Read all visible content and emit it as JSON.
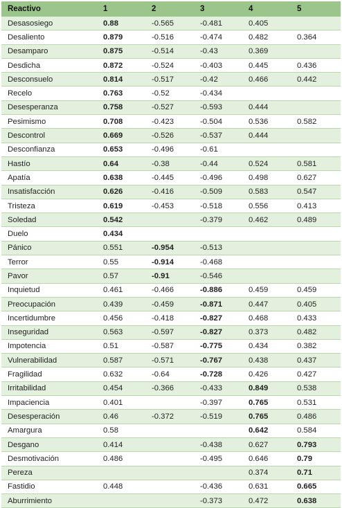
{
  "headers": [
    "Reactivo",
    "1",
    "2",
    "3",
    "4",
    "5"
  ],
  "rows": [
    {
      "name": "Desasosiego",
      "values": [
        "0.88",
        "-0.565",
        "-0.481",
        "0.405",
        ""
      ],
      "bold": 0
    },
    {
      "name": "Desaliento",
      "values": [
        "0.879",
        "-0.516",
        "-0.474",
        "0.482",
        "0.364"
      ],
      "bold": 0
    },
    {
      "name": "Desamparo",
      "values": [
        "0.875",
        "-0.514",
        "-0.43",
        "0.369",
        ""
      ],
      "bold": 0
    },
    {
      "name": "Desdicha",
      "values": [
        "0.872",
        "-0.524",
        "-0.403",
        "0.445",
        "0.436"
      ],
      "bold": 0
    },
    {
      "name": "Desconsuelo",
      "values": [
        "0.814",
        "-0.517",
        "-0.42",
        "0.466",
        "0.442"
      ],
      "bold": 0
    },
    {
      "name": "Recelo",
      "values": [
        "0.763",
        "-0.52",
        "-0.434",
        "",
        ""
      ],
      "bold": 0
    },
    {
      "name": "Desesperanza",
      "values": [
        "0.758",
        "-0.527",
        "-0.593",
        "0.444",
        ""
      ],
      "bold": 0
    },
    {
      "name": "Pesimismo",
      "values": [
        "0.708",
        "-0.423",
        "-0.504",
        "0.536",
        "0.582"
      ],
      "bold": 0
    },
    {
      "name": "Descontrol",
      "values": [
        "0.669",
        "-0.526",
        "-0.537",
        "0.444",
        ""
      ],
      "bold": 0
    },
    {
      "name": "Desconfianza",
      "values": [
        "0.653",
        "-0.496",
        "-0.61",
        "",
        ""
      ],
      "bold": 0
    },
    {
      "name": "Hastío",
      "values": [
        "0.64",
        "-0.38",
        "-0.44",
        "0.524",
        "0.581"
      ],
      "bold": 0
    },
    {
      "name": "Apatía",
      "values": [
        "0.638",
        "-0.445",
        "-0.496",
        "0.498",
        "0.627"
      ],
      "bold": 0
    },
    {
      "name": "Insatisfacción",
      "values": [
        "0.626",
        "-0.416",
        "-0.509",
        "0.583",
        "0.547"
      ],
      "bold": 0
    },
    {
      "name": "Tristeza",
      "values": [
        "0.619",
        "-0.453",
        "-0.518",
        "0.556",
        "0.413"
      ],
      "bold": 0
    },
    {
      "name": "Soledad",
      "values": [
        "0.542",
        "",
        "-0.379",
        "0.462",
        "0.489"
      ],
      "bold": 0
    },
    {
      "name": "Duelo",
      "values": [
        "0.434",
        "",
        "",
        "",
        ""
      ],
      "bold": 0
    },
    {
      "name": "Pánico",
      "values": [
        "0.551",
        "-0.954",
        "-0.513",
        "",
        ""
      ],
      "bold": 1
    },
    {
      "name": "Terror",
      "values": [
        "0.55",
        "-0.914",
        "-0.468",
        "",
        ""
      ],
      "bold": 1
    },
    {
      "name": "Pavor",
      "values": [
        "0.57",
        "-0.91",
        "-0.546",
        "",
        ""
      ],
      "bold": 1
    },
    {
      "name": "Inquietud",
      "values": [
        "0.461",
        "-0.466",
        "-0.886",
        "0.459",
        "0.459"
      ],
      "bold": 2
    },
    {
      "name": "Preocupación",
      "values": [
        "0.439",
        "-0.459",
        "-0.871",
        "0.447",
        "0.405"
      ],
      "bold": 2
    },
    {
      "name": "Incertidumbre",
      "values": [
        "0.456",
        "-0.418",
        "-0.827",
        "0.468",
        "0.433"
      ],
      "bold": 2
    },
    {
      "name": "Inseguridad",
      "values": [
        "0.563",
        "-0.597",
        "-0.827",
        "0.373",
        "0.482"
      ],
      "bold": 2
    },
    {
      "name": "Impotencia",
      "values": [
        "0.51",
        "-0.587",
        "-0.775",
        "0.434",
        "0.382"
      ],
      "bold": 2
    },
    {
      "name": "Vulnerabilidad",
      "values": [
        "0.587",
        "-0.571",
        "-0.767",
        "0.438",
        "0.437"
      ],
      "bold": 2
    },
    {
      "name": "Fragilidad",
      "values": [
        "0.632",
        "-0.64",
        "-0.728",
        "0.426",
        "0.427"
      ],
      "bold": 2
    },
    {
      "name": "Irritabilidad",
      "values": [
        "0.454",
        "-0.366",
        "-0.433",
        "0.849",
        "0.538"
      ],
      "bold": 3
    },
    {
      "name": "Impaciencia",
      "values": [
        "0.401",
        "",
        "-0.397",
        "0.765",
        "0.531"
      ],
      "bold": 3
    },
    {
      "name": "Desesperación",
      "values": [
        "0.46",
        "-0.372",
        "-0.519",
        "0.765",
        "0.486"
      ],
      "bold": 3
    },
    {
      "name": "Amargura",
      "values": [
        "0.58",
        "",
        "",
        "0.642",
        "0.584"
      ],
      "bold": 3
    },
    {
      "name": "Desgano",
      "values": [
        "0.414",
        "",
        "-0.438",
        "0.627",
        "0.793"
      ],
      "bold": 4
    },
    {
      "name": "Desmotivación",
      "values": [
        "0.486",
        "",
        "-0.495",
        "0.646",
        "0.79"
      ],
      "bold": 4
    },
    {
      "name": "Pereza",
      "values": [
        "",
        "",
        "",
        "0.374",
        "0.71"
      ],
      "bold": 4
    },
    {
      "name": "Fastidio",
      "values": [
        "0.448",
        "",
        "-0.436",
        "0.631",
        "0.665"
      ],
      "bold": 4
    },
    {
      "name": "Aburrimiento",
      "values": [
        "",
        "",
        "-0.373",
        "0.472",
        "0.638"
      ],
      "bold": 4
    }
  ],
  "colors": {
    "header": "#9cc58c",
    "row_alt": "#e3f0dd",
    "row": "#ffffff",
    "divider": "#b9d7ad"
  }
}
